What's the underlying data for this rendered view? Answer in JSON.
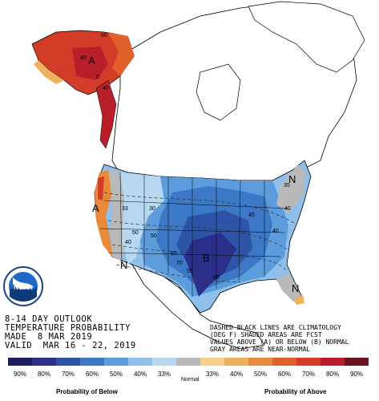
{
  "title_lines": [
    "8-14 DAY OUTLOOK",
    "TEMPERATURE PROBABILITY",
    "MADE  8 MAR 2019",
    "VALID  MAR 16 - 22, 2019"
  ],
  "notes_lines": [
    "DASHED BLACK LINES ARE CLIMATOLOGY",
    "(DEG F) SHADED AREAS ARE FCST",
    "VALUES ABOVE (A) OR BELOW (B) NORMAL",
    "GRAY AREAS ARE NEAR-NORMAL"
  ],
  "logo": {
    "text": "NOAA",
    "icon": "noaa-logo-icon"
  },
  "legend": {
    "below_label": "Probability of Below",
    "normal_label": "Normal",
    "above_label": "Probability of Above",
    "below": [
      {
        "pct": "90%",
        "color": "#1c1f5c"
      },
      {
        "pct": "80%",
        "color": "#2b2f8a"
      },
      {
        "pct": "70%",
        "color": "#2e54a8"
      },
      {
        "pct": "60%",
        "color": "#3d78c6"
      },
      {
        "pct": "50%",
        "color": "#5c9bdc"
      },
      {
        "pct": "40%",
        "color": "#8fc0ec"
      },
      {
        "pct": "33%",
        "color": "#b8d8f2"
      }
    ],
    "normal_color": "#b9b9b9",
    "above": [
      {
        "pct": "33%",
        "color": "#f4d08c"
      },
      {
        "pct": "40%",
        "color": "#efb25c"
      },
      {
        "pct": "50%",
        "color": "#e88a3a"
      },
      {
        "pct": "60%",
        "color": "#e0622a"
      },
      {
        "pct": "70%",
        "color": "#d43c2a"
      },
      {
        "pct": "80%",
        "color": "#b81f2a"
      },
      {
        "pct": "90%",
        "color": "#6e1420"
      }
    ]
  },
  "region_letters": [
    {
      "text": "A",
      "region": "west-coast-california"
    },
    {
      "text": "N",
      "region": "great-basin"
    },
    {
      "text": "B",
      "region": "south-central-us"
    },
    {
      "text": "N",
      "region": "florida"
    },
    {
      "text": "A",
      "region": "alaska"
    },
    {
      "text": "N",
      "region": "new-england"
    }
  ],
  "climatology_labels": [
    "60",
    "40",
    "0",
    "40",
    "33",
    "30",
    "50",
    "45",
    "50",
    "40",
    "40",
    "60",
    "40",
    "70",
    "55",
    "65",
    "35"
  ]
}
